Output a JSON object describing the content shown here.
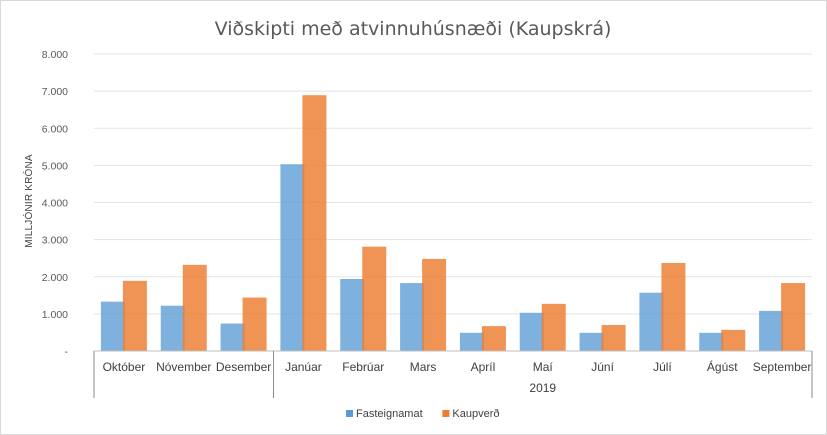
{
  "chart_data": {
    "type": "bar",
    "title": "Viðskipti með atvinnuhúsnæði (Kaupskrá)",
    "ylabel": "MILLJÓNIR KRÓNA",
    "ylim": [
      0,
      8000
    ],
    "yticks": [
      "-",
      "1.000",
      "2.000",
      "3.000",
      "4.000",
      "5.000",
      "6.000",
      "7.000",
      "8.000"
    ],
    "categories": [
      "Október",
      "Nóvember",
      "Desember",
      "Janúar",
      "Febrúar",
      "Mars",
      "Apríl",
      "Maí",
      "Júní",
      "Júlí",
      "Ágúst",
      "September"
    ],
    "group_labels": [
      {
        "label": "",
        "start": 0,
        "end": 2
      },
      {
        "label": "2019",
        "start": 3,
        "end": 11
      }
    ],
    "series": [
      {
        "name": "Fasteignamat",
        "color": "#5b9bd5",
        "values": [
          1330,
          1220,
          740,
          5030,
          1940,
          1830,
          490,
          1030,
          490,
          1570,
          490,
          1080
        ]
      },
      {
        "name": "Kaupverð",
        "color": "#ed7d31",
        "values": [
          1890,
          2320,
          1440,
          6890,
          2810,
          2480,
          670,
          1270,
          700,
          2370,
          570,
          1830
        ]
      }
    ],
    "grid": true,
    "legend": "bottom"
  }
}
